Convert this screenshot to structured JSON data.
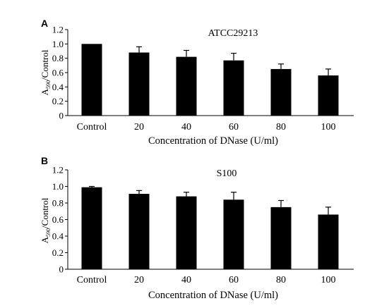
{
  "chart_data": [
    {
      "type": "bar",
      "panel_label": "A",
      "title": "ATCC29213",
      "categories": [
        "Control",
        "20",
        "40",
        "60",
        "80",
        "100"
      ],
      "values": [
        1.0,
        0.88,
        0.82,
        0.77,
        0.65,
        0.56
      ],
      "errors": [
        0.0,
        0.08,
        0.09,
        0.1,
        0.07,
        0.09
      ],
      "xlabel": "Concentration of DNase (U/ml)",
      "ylabel_base": "A",
      "ylabel_sub": "590",
      "ylabel_rest": "/Control",
      "yticks": [
        "0",
        "0.2",
        "0.4",
        "0.6",
        "0.8",
        "1.0",
        "1.2"
      ],
      "ylim": [
        0,
        1.2
      ],
      "bar_color": "#000000",
      "grid": false
    },
    {
      "type": "bar",
      "panel_label": "B",
      "title": "S100",
      "categories": [
        "Control",
        "20",
        "40",
        "60",
        "80",
        "100"
      ],
      "values": [
        0.99,
        0.91,
        0.88,
        0.84,
        0.75,
        0.66
      ],
      "errors": [
        0.01,
        0.04,
        0.05,
        0.09,
        0.08,
        0.09
      ],
      "xlabel": "Concentration of DNase (U/ml)",
      "ylabel_base": "A",
      "ylabel_sub": "590",
      "ylabel_rest": "/Control",
      "yticks": [
        "0",
        "0.2",
        "0.4",
        "0.6",
        "0.8",
        "1.0",
        "1.2"
      ],
      "ylim": [
        0,
        1.2
      ],
      "bar_color": "#000000",
      "grid": false
    }
  ]
}
